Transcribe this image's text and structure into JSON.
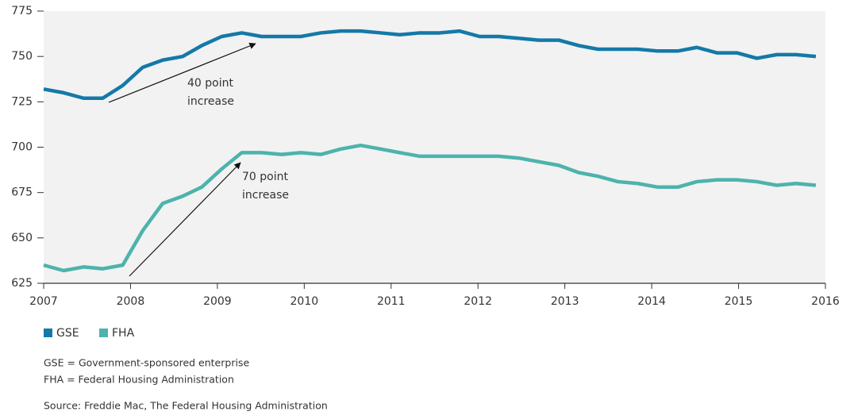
{
  "chart_data": {
    "type": "line",
    "x": [
      2007,
      2007.23,
      2007.46,
      2007.68,
      2007.91,
      2008.14,
      2008.37,
      2008.6,
      2008.82,
      2009.05,
      2009.28,
      2009.51,
      2009.74,
      2009.96,
      2010.19,
      2010.42,
      2010.65,
      2010.88,
      2011.1,
      2011.33,
      2011.56,
      2011.79,
      2012.02,
      2012.24,
      2012.47,
      2012.7,
      2012.93,
      2013.16,
      2013.38,
      2013.61,
      2013.84,
      2014.07,
      2014.3,
      2014.52,
      2014.75,
      2014.98,
      2015.21,
      2015.44,
      2015.66,
      2015.89
    ],
    "series": [
      {
        "name": "GSE",
        "color": "#1479a8",
        "values": [
          732,
          730,
          727,
          727,
          734,
          744,
          748,
          750,
          756,
          761,
          763,
          761,
          761,
          761,
          763,
          764,
          764,
          763,
          762,
          763,
          763,
          764,
          761,
          761,
          760,
          759,
          759,
          756,
          754,
          754,
          754,
          753,
          753,
          755,
          752,
          752,
          749,
          751,
          751,
          750
        ]
      },
      {
        "name": "FHA",
        "color": "#4db3ac",
        "values": [
          635,
          632,
          634,
          633,
          635,
          654,
          669,
          673,
          678,
          688,
          697,
          697,
          696,
          697,
          696,
          699,
          701,
          699,
          697,
          695,
          695,
          695,
          695,
          695,
          694,
          692,
          690,
          686,
          684,
          681,
          680,
          678,
          678,
          681,
          682,
          682,
          681,
          679,
          680,
          679
        ]
      }
    ],
    "xlim": [
      2007,
      2016
    ],
    "xticks": [
      2007,
      2008,
      2009,
      2010,
      2011,
      2012,
      2013,
      2014,
      2015,
      2016
    ],
    "ylim": [
      625,
      775
    ],
    "yticks": [
      625,
      650,
      675,
      700,
      725,
      750,
      775
    ],
    "annotations": [
      [
        "40 point",
        "increase"
      ],
      [
        "70 point",
        "increase"
      ]
    ],
    "notes": [
      "GSE = Government-sponsored enterprise",
      "FHA = Federal Housing Administration"
    ],
    "source": "Source: Freddie Mac, The Federal Housing Administration"
  }
}
